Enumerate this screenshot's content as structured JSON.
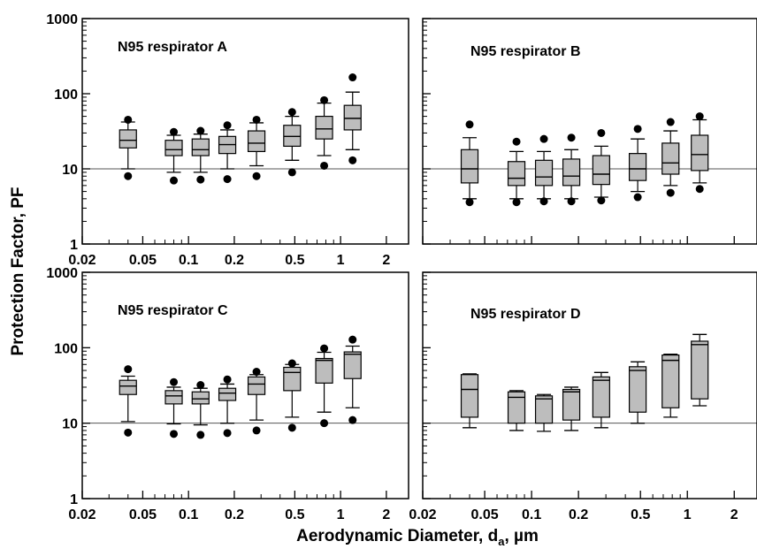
{
  "ylabel": "Protection Factor, PF",
  "xlabel_main": "Aerodynamic Diameter, d",
  "xlabel_sub": "a",
  "xlabel_suffix": ", µm",
  "chart_data": [
    {
      "type": "box",
      "title": "N95 respirator A",
      "x_scale": "log",
      "y_scale": "log",
      "xlim": [
        0.02,
        2.8
      ],
      "ylim": [
        1,
        1000
      ],
      "reference_line": 10,
      "x_ticks": [
        "0.02",
        "0.05",
        "0.1",
        "0.2",
        "0.5",
        "1",
        "2"
      ],
      "y_ticks": [
        "1",
        "10",
        "100",
        "1000"
      ],
      "x": [
        0.04,
        0.08,
        0.12,
        0.18,
        0.28,
        0.48,
        0.78,
        1.2
      ],
      "boxes": [
        {
          "p10": 10,
          "q1": 19,
          "median": 24,
          "q3": 33,
          "p90": 42,
          "outliers": [
            8,
            45
          ]
        },
        {
          "p10": 9,
          "q1": 15,
          "median": 18,
          "q3": 24,
          "p90": 28,
          "outliers": [
            7,
            31
          ]
        },
        {
          "p10": 9,
          "q1": 15,
          "median": 18,
          "q3": 25,
          "p90": 29,
          "outliers": [
            7.2,
            32
          ]
        },
        {
          "p10": 10,
          "q1": 16,
          "median": 21,
          "q3": 27,
          "p90": 33,
          "outliers": [
            7.3,
            38
          ]
        },
        {
          "p10": 11,
          "q1": 17,
          "median": 22,
          "q3": 32,
          "p90": 41,
          "outliers": [
            8,
            45
          ]
        },
        {
          "p10": 13,
          "q1": 20,
          "median": 27,
          "q3": 38,
          "p90": 50,
          "outliers": [
            9,
            57
          ]
        },
        {
          "p10": 15,
          "q1": 25,
          "median": 34,
          "q3": 50,
          "p90": 75,
          "outliers": [
            11,
            82
          ]
        },
        {
          "p10": 18,
          "q1": 33,
          "median": 47,
          "q3": 70,
          "p90": 105,
          "outliers": [
            13,
            165
          ]
        }
      ]
    },
    {
      "type": "box",
      "title": "N95 respirator B",
      "x_scale": "log",
      "y_scale": "log",
      "xlim": [
        0.02,
        2.8
      ],
      "ylim": [
        1,
        1000
      ],
      "reference_line": 10,
      "x_ticks": [],
      "y_ticks": [],
      "x": [
        0.04,
        0.08,
        0.12,
        0.18,
        0.28,
        0.48,
        0.78,
        1.2
      ],
      "boxes": [
        {
          "p10": 4,
          "q1": 6.5,
          "median": 10,
          "q3": 18,
          "p90": 26,
          "outliers": [
            3.6,
            39
          ]
        },
        {
          "p10": 4,
          "q1": 6,
          "median": 7.5,
          "q3": 12.5,
          "p90": 17,
          "outliers": [
            3.6,
            23
          ]
        },
        {
          "p10": 4,
          "q1": 6,
          "median": 7.8,
          "q3": 13,
          "p90": 17,
          "outliers": [
            3.7,
            25
          ]
        },
        {
          "p10": 4,
          "q1": 6,
          "median": 8,
          "q3": 13.5,
          "p90": 18,
          "outliers": [
            3.7,
            26
          ]
        },
        {
          "p10": 4.2,
          "q1": 6.2,
          "median": 8.5,
          "q3": 15,
          "p90": 20,
          "outliers": [
            3.8,
            30
          ]
        },
        {
          "p10": 5,
          "q1": 7,
          "median": 10,
          "q3": 16,
          "p90": 25,
          "outliers": [
            4.2,
            34
          ]
        },
        {
          "p10": 6,
          "q1": 8.5,
          "median": 12,
          "q3": 22,
          "p90": 32,
          "outliers": [
            4.8,
            42
          ]
        },
        {
          "p10": 6.5,
          "q1": 9.5,
          "median": 15.5,
          "q3": 28,
          "p90": 45,
          "outliers": [
            5.4,
            50
          ]
        }
      ]
    },
    {
      "type": "box",
      "title": "N95 respirator C",
      "x_scale": "log",
      "y_scale": "log",
      "xlim": [
        0.02,
        2.8
      ],
      "ylim": [
        1,
        1000
      ],
      "reference_line": 10,
      "x_ticks": [
        "0.02",
        "0.05",
        "0.1",
        "0.2",
        "0.5",
        "1",
        "2"
      ],
      "y_ticks": [
        "1",
        "10",
        "100",
        "1000"
      ],
      "x": [
        0.04,
        0.08,
        0.12,
        0.18,
        0.28,
        0.48,
        0.78,
        1.2
      ],
      "boxes": [
        {
          "p10": 10.5,
          "q1": 24,
          "median": 31,
          "q3": 37,
          "p90": 42,
          "outliers": [
            7.5,
            52
          ]
        },
        {
          "p10": 9.8,
          "q1": 18,
          "median": 23,
          "q3": 27,
          "p90": 30,
          "outliers": [
            7.2,
            35
          ]
        },
        {
          "p10": 9.5,
          "q1": 18,
          "median": 21,
          "q3": 26,
          "p90": 29,
          "outliers": [
            7,
            32
          ]
        },
        {
          "p10": 10,
          "q1": 20,
          "median": 25,
          "q3": 29,
          "p90": 33,
          "outliers": [
            7.4,
            38
          ]
        },
        {
          "p10": 11,
          "q1": 24,
          "median": 33,
          "q3": 41,
          "p90": 44,
          "outliers": [
            8,
            48
          ]
        },
        {
          "p10": 12,
          "q1": 27,
          "median": 47,
          "q3": 55,
          "p90": 60,
          "outliers": [
            8.7,
            62
          ]
        },
        {
          "p10": 14,
          "q1": 34,
          "median": 68,
          "q3": 72,
          "p90": 87,
          "outliers": [
            10,
            98
          ]
        },
        {
          "p10": 16,
          "q1": 39,
          "median": 82,
          "q3": 88,
          "p90": 105,
          "outliers": [
            11,
            128
          ]
        }
      ]
    },
    {
      "type": "box",
      "title": "N95 respirator D",
      "x_scale": "log",
      "y_scale": "log",
      "xlim": [
        0.02,
        2.8
      ],
      "ylim": [
        1,
        1000
      ],
      "reference_line": 10,
      "x_ticks": [
        "0.02",
        "0.05",
        "0.1",
        "0.2",
        "0.5",
        "1",
        "2"
      ],
      "y_ticks": [],
      "x": [
        0.04,
        0.08,
        0.12,
        0.18,
        0.28,
        0.48,
        0.78,
        1.2
      ],
      "boxes": [
        {
          "p10": 8.7,
          "q1": 12,
          "median": 28,
          "q3": 44,
          "p90": 45,
          "outliers": []
        },
        {
          "p10": 8,
          "q1": 10,
          "median": 22,
          "q3": 26,
          "p90": 27,
          "outliers": []
        },
        {
          "p10": 7.8,
          "q1": 10,
          "median": 21,
          "q3": 23,
          "p90": 24,
          "outliers": []
        },
        {
          "p10": 8,
          "q1": 11,
          "median": 26,
          "q3": 28,
          "p90": 30,
          "outliers": []
        },
        {
          "p10": 8.7,
          "q1": 12,
          "median": 37,
          "q3": 41,
          "p90": 47,
          "outliers": []
        },
        {
          "p10": 10,
          "q1": 14,
          "median": 50,
          "q3": 56,
          "p90": 65,
          "outliers": []
        },
        {
          "p10": 12,
          "q1": 16,
          "median": 68,
          "q3": 80,
          "p90": 82,
          "outliers": []
        },
        {
          "p10": 17,
          "q1": 21,
          "median": 110,
          "q3": 122,
          "p90": 150,
          "outliers": []
        }
      ]
    }
  ]
}
